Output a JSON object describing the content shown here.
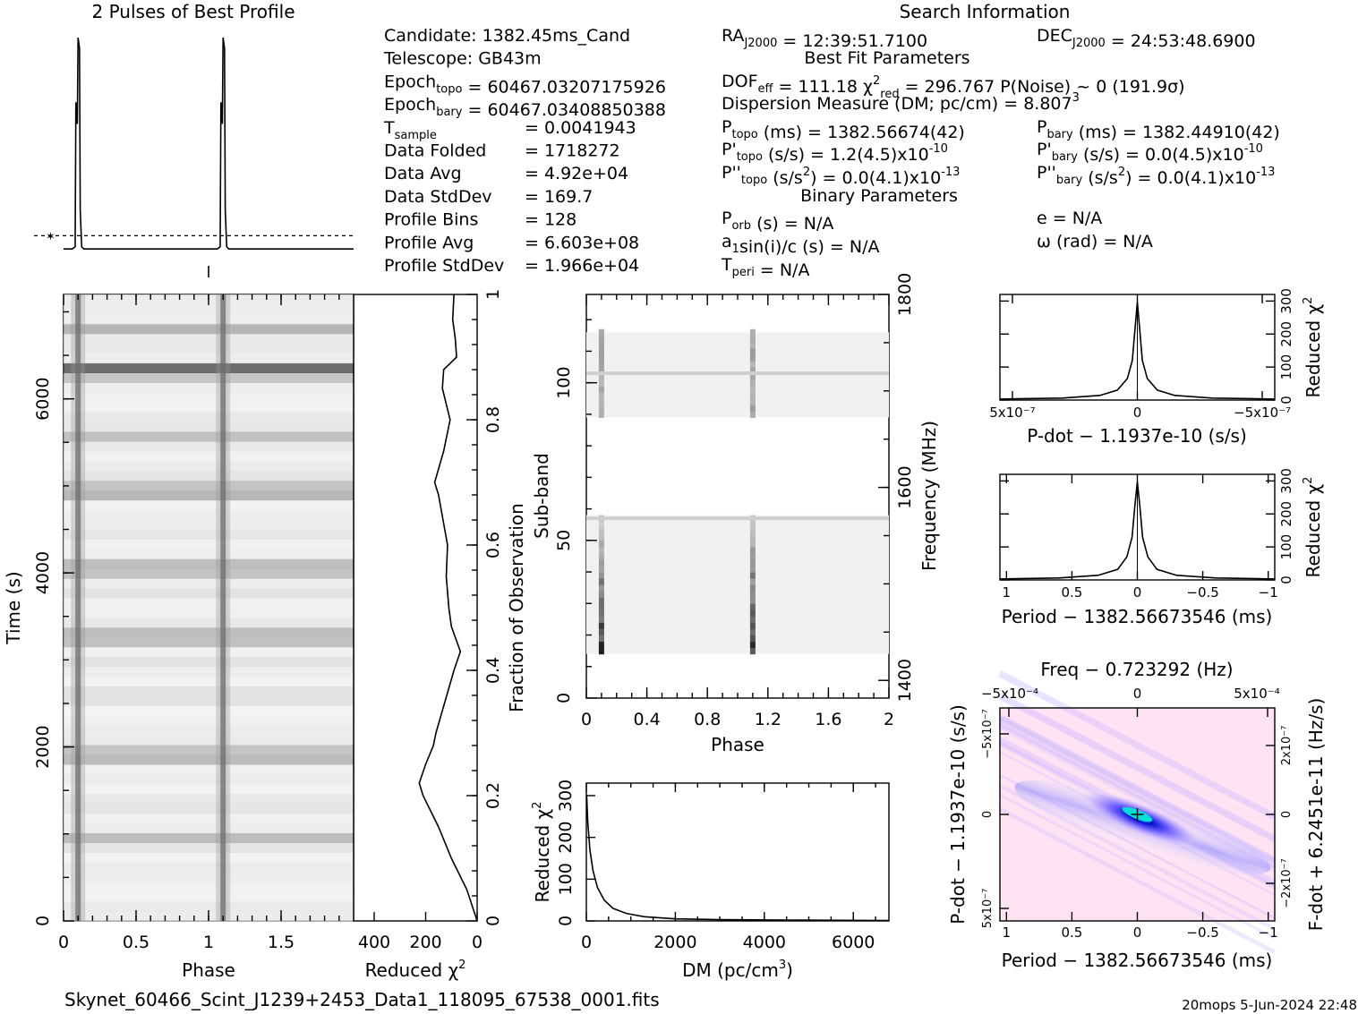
{
  "title_profile": "2 Pulses of Best Profile",
  "title_search": "Search Information",
  "info_left": [
    {
      "main": "Candidate:  1382.45ms_Cand",
      "sub": "",
      "rest": ""
    },
    {
      "main": "Telescope:  GB43m",
      "sub": "",
      "rest": ""
    },
    {
      "main": "Epoch",
      "sub": "topo",
      "rest": " = 60467.03207175926"
    },
    {
      "main": "Epoch",
      "sub": "bary",
      "rest": " = 60467.03408850388"
    },
    {
      "main": "T",
      "sub": "sample",
      "rest": "",
      "value": "=   0.0041943"
    },
    {
      "main": "Data Folded",
      "sub": "",
      "rest": "",
      "value": "=   1718272"
    },
    {
      "main": "Data Avg",
      "sub": "",
      "rest": "",
      "value": "=   4.92e+04"
    },
    {
      "main": "Data StdDev",
      "sub": "",
      "rest": "",
      "value": "=   169.7"
    },
    {
      "main": "Profile Bins",
      "sub": "",
      "rest": "",
      "value": "=   128"
    },
    {
      "main": "Profile Avg",
      "sub": "",
      "rest": "",
      "value": "=   6.603e+08"
    },
    {
      "main": "Profile StdDev",
      "sub": "",
      "rest": "",
      "value": "=   1.966e+04"
    }
  ],
  "info_mid": {
    "ra": {
      "main": "RA",
      "sub": "J2000",
      "rest": " = 12:39:51.7100"
    },
    "best_fit_header": "Best Fit Parameters",
    "dof": {
      "main": "DOF",
      "sub": "eff",
      "rest": " = 111.18  ",
      "chi": "χ",
      "sup": "2",
      "sub2": "red",
      "rest2": " = 296.767   P(Noise) ~ 0    (191.9σ)"
    },
    "dm": {
      "main": "Dispersion Measure (DM; pc/cm",
      "sup": "3",
      "rest": ") = 8.807"
    },
    "ptopo": {
      "main": "P",
      "sub": "topo",
      "rest": " (ms) =  1382.56674(42)"
    },
    "pdtopo": {
      "main": "P'",
      "sub": "topo",
      "rest": " (s/s) =  1.2(4.5)x10",
      "sup": "-10"
    },
    "pddtopo": {
      "main": "P''",
      "sub": "topo",
      "rest": " (s/s",
      "sup": "2",
      "rest2": ") = 0.0(4.1)x10",
      "sup2": "-13"
    },
    "binary_header": "Binary Parameters",
    "porb": {
      "main": "P",
      "sub": "orb",
      "rest": " (s) = N/A"
    },
    "a1": {
      "main": "a",
      "sub": "1",
      "rest": "sin(i)/c (s) = N/A"
    },
    "tperi": {
      "main": "T",
      "sub": "peri",
      "rest": " = N/A"
    }
  },
  "info_right": {
    "dec": {
      "main": "DEC",
      "sub": "J2000",
      "rest": " = 24:53:48.6900"
    },
    "pbary": {
      "main": "P",
      "sub": "bary",
      "rest": " (ms) =  1382.44910(42)"
    },
    "pdbary": {
      "main": "P'",
      "sub": "bary",
      "rest": " (s/s) = 0.0(4.5)x10",
      "sup": "-10"
    },
    "pddbary": {
      "main": "P''",
      "sub": "bary",
      "rest": " (s/s",
      "sup": "2",
      "rest2": ") = 0.0(4.1)x10",
      "sup2": "-13"
    },
    "e": "e = N/A",
    "omega": "ω (rad) = N/A"
  },
  "footer_file": "Skynet_60466_Scint_J1239+2453_Data1_118095_67538_0001.fits",
  "footer_stamp": "20mops  5-Jun-2024 22:48",
  "colors": {
    "heat_low": "#ffe6f4",
    "heat_mid": "#3a30ff",
    "heat_peak": "#00e0e0"
  },
  "chart_data": [
    {
      "id": "profile",
      "type": "line",
      "title": "2 Pulses of Best Profile",
      "x": [
        0,
        0.06,
        0.08,
        0.085,
        0.095,
        0.1,
        0.11,
        0.115,
        0.125,
        0.14,
        1.0,
        1.06,
        1.08,
        1.085,
        1.095,
        1.1,
        1.11,
        1.115,
        1.125,
        1.14,
        2.0
      ],
      "values": [
        0.02,
        0.02,
        0.03,
        0.7,
        0.6,
        1.0,
        0.95,
        0.2,
        0.03,
        0.02,
        0.02,
        0.02,
        0.03,
        0.7,
        0.6,
        1.0,
        0.95,
        0.2,
        0.03,
        0.02,
        0.02
      ],
      "xlim": [
        0,
        2
      ],
      "mean_line": 0.04
    },
    {
      "id": "time_phase",
      "type": "heatmap",
      "xlabel": "Phase",
      "ylabel": "Time (s)",
      "xlim": [
        0,
        2
      ],
      "ylim": [
        0,
        7200
      ],
      "xticks": [
        "0",
        "0.5",
        "1",
        "1.5"
      ],
      "yticks": [
        "0",
        "2000",
        "4000",
        "6000"
      ],
      "pulse_phases": [
        0.1,
        1.1
      ],
      "bright_times": [
        1000,
        1850,
        2000,
        3250,
        3300,
        4000,
        4150,
        4900,
        5000,
        5600,
        6300,
        6350,
        6400,
        6800
      ]
    },
    {
      "id": "time_chi",
      "type": "line",
      "xlabel": "Reduced χ²",
      "ylabel": "Fraction of Observation",
      "xticks": [
        "400",
        "200",
        "0"
      ],
      "yticks": [
        "0",
        "0.2",
        "0.4",
        "0.6",
        "0.8",
        "1"
      ],
      "xlim": [
        480,
        0
      ],
      "ylim": [
        0,
        1
      ],
      "fraction": [
        0.0,
        0.05,
        0.1,
        0.15,
        0.2,
        0.22,
        0.25,
        0.28,
        0.3,
        0.35,
        0.4,
        0.43,
        0.47,
        0.5,
        0.55,
        0.6,
        0.68,
        0.7,
        0.75,
        0.8,
        0.85,
        0.88,
        0.9,
        0.93,
        0.96,
        1.0
      ],
      "chi": [
        0,
        40,
        100,
        150,
        210,
        225,
        200,
        170,
        160,
        125,
        90,
        65,
        100,
        110,
        120,
        115,
        150,
        165,
        130,
        105,
        135,
        130,
        80,
        85,
        95,
        90
      ]
    },
    {
      "id": "subband",
      "type": "heatmap",
      "xlabel": "Phase",
      "ylabel": "Sub-band",
      "y2label": "Frequency (MHz)",
      "xlim": [
        0,
        2
      ],
      "ylim": [
        0,
        128
      ],
      "xticks": [
        "0",
        "0.4",
        "0.8",
        "1.2",
        "1.6",
        "2"
      ],
      "yticks": [
        "0",
        "50",
        "100"
      ],
      "y2ticks": [
        "1400",
        "1600",
        "1800"
      ],
      "pulse_phases": [
        0.1,
        1.1
      ],
      "active_bands": [
        [
          14,
          58
        ],
        [
          89,
          116
        ]
      ],
      "rfi_bands": [
        57,
        103
      ]
    },
    {
      "id": "dm_chi",
      "type": "line",
      "xlabel": "DM (pc/cm³)",
      "ylabel": "Reduced χ²",
      "xlim": [
        0,
        6800
      ],
      "ylim": [
        0,
        330
      ],
      "xticks": [
        "0",
        "2000",
        "4000",
        "6000"
      ],
      "yticks": [
        "0",
        "100",
        "200",
        "300"
      ],
      "x": [
        0,
        8.8,
        30,
        80,
        150,
        250,
        400,
        600,
        900,
        1300,
        2000,
        3000,
        4500,
        6800
      ],
      "values": [
        300,
        297,
        240,
        170,
        120,
        80,
        50,
        30,
        18,
        10,
        5,
        3,
        2,
        1
      ]
    },
    {
      "id": "pdot_chi",
      "type": "line",
      "xlabel": "P-dot − 1.1937e-10 (s/s)",
      "ylabel": "Reduced χ²",
      "xticks": [
        "5x10⁻⁷",
        "0",
        "−5x10⁻⁷"
      ],
      "yticks": [
        "0",
        "100",
        "200",
        "300"
      ],
      "xlim": [
        5.5e-07,
        -5.5e-07
      ],
      "ylim": [
        0,
        320
      ],
      "x": [
        5.5e-07,
        3e-07,
        1.5e-07,
        8e-08,
        4e-08,
        2e-08,
        1e-08,
        0,
        -1e-08,
        -2e-08,
        -4e-08,
        -8e-08,
        -1.5e-07,
        -3e-07,
        -5.5e-07
      ],
      "values": [
        3,
        6,
        14,
        30,
        65,
        120,
        210,
        297,
        210,
        120,
        65,
        30,
        14,
        6,
        3
      ]
    },
    {
      "id": "period_chi",
      "type": "line",
      "xlabel": "Period − 1382.56673546 (ms)",
      "ylabel": "Reduced χ²",
      "xticks": [
        "1",
        "0.5",
        "0",
        "−0.5",
        "−1"
      ],
      "yticks": [
        "0",
        "100",
        "200",
        "300"
      ],
      "xlim": [
        1.05,
        -1.05
      ],
      "ylim": [
        0,
        320
      ],
      "x": [
        1.05,
        0.6,
        0.3,
        0.15,
        0.08,
        0.04,
        0.02,
        0,
        -0.02,
        -0.04,
        -0.08,
        -0.15,
        -0.3,
        -0.6,
        -1.05
      ],
      "values": [
        3,
        6,
        14,
        32,
        70,
        130,
        220,
        297,
        220,
        130,
        70,
        32,
        14,
        6,
        3
      ]
    },
    {
      "id": "p_pdot",
      "type": "heatmap",
      "title": "Freq − 0.723292 (Hz)",
      "xlabel": "Period − 1382.56673546 (ms)",
      "ylabel": "P-dot − 1.1937e-10 (s/s)",
      "y2label": "F-dot + 6.2451e-11 (Hz/s)",
      "xticks": [
        "1",
        "0.5",
        "0",
        "−0.5",
        "−1"
      ],
      "x2ticks": [
        "−5x10⁻⁴",
        "0",
        "5x10⁻⁴"
      ],
      "yticks": [
        "−5x10⁻⁷",
        "0",
        "5x10⁻⁷"
      ],
      "y2ticks": [
        "2x10⁻⁷",
        "0",
        "−2x10⁻⁷"
      ],
      "xlim": [
        1.05,
        -1.05
      ],
      "ylim": [
        -5.5e-07,
        5.5e-07
      ],
      "peak": [
        0,
        0
      ]
    }
  ]
}
